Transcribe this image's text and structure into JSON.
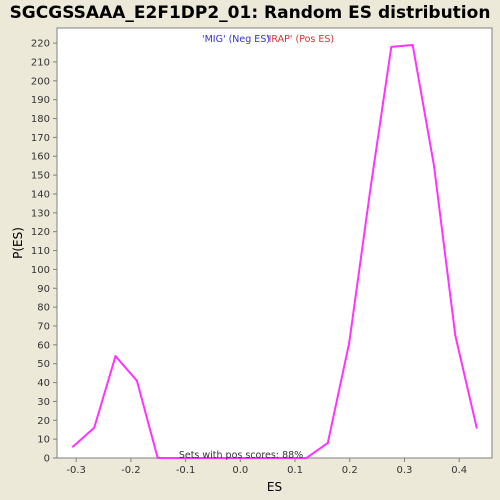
{
  "chart_data": {
    "type": "line",
    "title": "SGCGSSAAA_E2F1DP2_01: Random ES distribution",
    "xlabel": "ES",
    "ylabel": "P(ES)",
    "xlim": [
      -0.335,
      0.46
    ],
    "ylim": [
      0,
      228
    ],
    "x_ticks": [
      "-0.3",
      "-0.2",
      "-0.1",
      "0.0",
      "0.1",
      "0.2",
      "0.3",
      "0.4"
    ],
    "x_tick_values": [
      -0.3,
      -0.2,
      -0.1,
      0.0,
      0.1,
      0.2,
      0.3,
      0.4
    ],
    "y_ticks": [
      "0",
      "10",
      "20",
      "30",
      "40",
      "50",
      "60",
      "70",
      "80",
      "90",
      "100",
      "110",
      "120",
      "130",
      "140",
      "150",
      "160",
      "170",
      "180",
      "190",
      "200",
      "210",
      "220"
    ],
    "y_tick_values": [
      0,
      10,
      20,
      30,
      40,
      50,
      60,
      70,
      80,
      90,
      100,
      110,
      120,
      130,
      140,
      150,
      160,
      170,
      180,
      190,
      200,
      210,
      220
    ],
    "series": [
      {
        "color": "#FF33FF",
        "x": [
          -0.306,
          -0.267,
          -0.228,
          -0.189,
          -0.151,
          -0.112,
          -0.073,
          -0.034,
          0.005,
          0.044,
          0.083,
          0.121,
          0.16,
          0.199,
          0.238,
          0.276,
          0.315,
          0.354,
          0.393,
          0.432
        ],
        "y": [
          6,
          16,
          54,
          41,
          0,
          0,
          0,
          0,
          0,
          0,
          0,
          0,
          8,
          61,
          143,
          218,
          219,
          155,
          65,
          16
        ]
      }
    ],
    "legend": [
      {
        "label": "'MIG' (Neg ES)",
        "color": "#3333CC"
      },
      {
        "label": "'IRAP' (Pos ES)",
        "color": "#CC3333"
      }
    ],
    "annotation": "Sets with pos scores: 88%",
    "grid": false,
    "colors": {
      "background": "#ECE9D8",
      "plot_background": "#FFFFFF",
      "axis": "#808080"
    }
  }
}
